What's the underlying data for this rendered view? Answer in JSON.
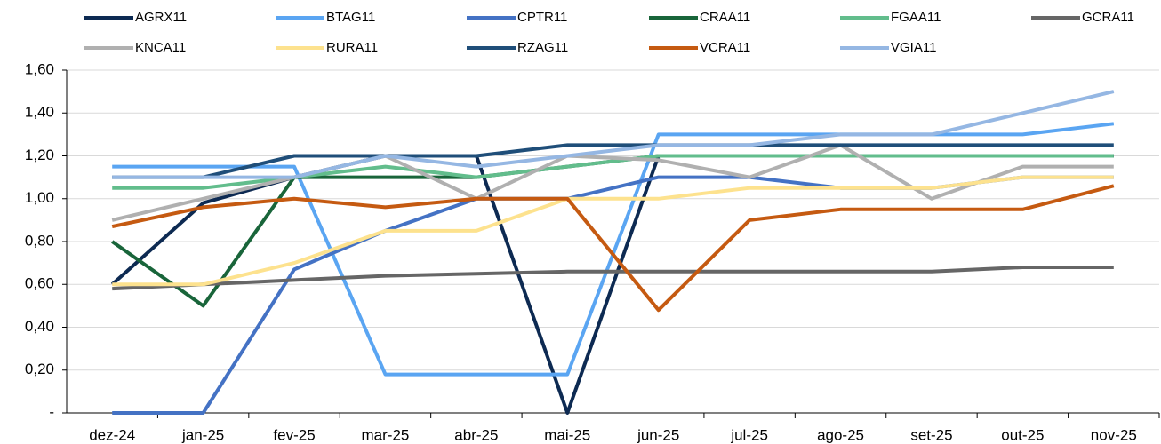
{
  "chart_data": {
    "type": "line",
    "categories": [
      "dez-24",
      "jan-25",
      "fev-25",
      "mar-25",
      "abr-25",
      "mai-25",
      "jun-25",
      "jul-25",
      "ago-25",
      "set-25",
      "out-25",
      "nov-25"
    ],
    "series": [
      {
        "name": "AGRX11",
        "color": "#0d2a52",
        "values": [
          0.6,
          0.98,
          1.1,
          1.2,
          1.2,
          0.0,
          1.2,
          1.2,
          1.2,
          1.2,
          1.2,
          1.2
        ]
      },
      {
        "name": "BTAG11",
        "color": "#5aa5f2",
        "values": [
          1.15,
          1.15,
          1.15,
          0.18,
          0.18,
          0.18,
          1.3,
          1.3,
          1.3,
          1.3,
          1.3,
          1.35
        ]
      },
      {
        "name": "CPTR11",
        "color": "#4472c4",
        "values": [
          0.0,
          0.0,
          0.67,
          0.85,
          1.0,
          1.0,
          1.1,
          1.1,
          1.05,
          1.05,
          1.1,
          1.1
        ]
      },
      {
        "name": "CRAA11",
        "color": "#19653a",
        "values": [
          0.8,
          0.5,
          1.1,
          1.1,
          1.1,
          1.15,
          1.2,
          1.2,
          1.2,
          1.2,
          1.2,
          1.2
        ]
      },
      {
        "name": "FGAA11",
        "color": "#62bd8c",
        "values": [
          1.05,
          1.05,
          1.1,
          1.15,
          1.1,
          1.15,
          1.2,
          1.2,
          1.2,
          1.2,
          1.2,
          1.2
        ]
      },
      {
        "name": "GCRA11",
        "color": "#666666",
        "values": [
          0.58,
          0.6,
          0.62,
          0.64,
          0.65,
          0.66,
          0.66,
          0.66,
          0.66,
          0.66,
          0.68,
          0.68
        ]
      },
      {
        "name": "KNCA11",
        "color": "#b0b0b0",
        "values": [
          0.9,
          1.0,
          1.1,
          1.2,
          1.0,
          1.2,
          1.18,
          1.1,
          1.25,
          1.0,
          1.15,
          1.15
        ]
      },
      {
        "name": "RURA11",
        "color": "#fde28e",
        "values": [
          0.6,
          0.6,
          0.7,
          0.85,
          0.85,
          1.0,
          1.0,
          1.05,
          1.05,
          1.05,
          1.1,
          1.1
        ]
      },
      {
        "name": "RZAG11",
        "color": "#1f4e79",
        "values": [
          1.1,
          1.1,
          1.2,
          1.2,
          1.2,
          1.25,
          1.25,
          1.25,
          1.25,
          1.25,
          1.25,
          1.25
        ]
      },
      {
        "name": "VCRA11",
        "color": "#c55a11",
        "values": [
          0.87,
          0.96,
          1.0,
          0.96,
          1.0,
          1.0,
          0.48,
          0.9,
          0.95,
          0.95,
          0.95,
          1.06
        ]
      },
      {
        "name": "VGIA11",
        "color": "#95b7e3",
        "values": [
          1.1,
          1.1,
          1.1,
          1.2,
          1.15,
          1.2,
          1.25,
          1.25,
          1.3,
          1.3,
          1.4,
          1.5
        ]
      }
    ],
    "ylim": [
      0,
      1.6
    ],
    "yticks": [
      {
        "value": 0,
        "label": "-"
      },
      {
        "value": 0.2,
        "label": "0,20"
      },
      {
        "value": 0.4,
        "label": "0,40"
      },
      {
        "value": 0.6,
        "label": "0,60"
      },
      {
        "value": 0.8,
        "label": "0,80"
      },
      {
        "value": 1.0,
        "label": "1,00"
      },
      {
        "value": 1.2,
        "label": "1,20"
      },
      {
        "value": 1.4,
        "label": "1,40"
      },
      {
        "value": 1.6,
        "label": "1,60"
      }
    ],
    "grid": true
  }
}
